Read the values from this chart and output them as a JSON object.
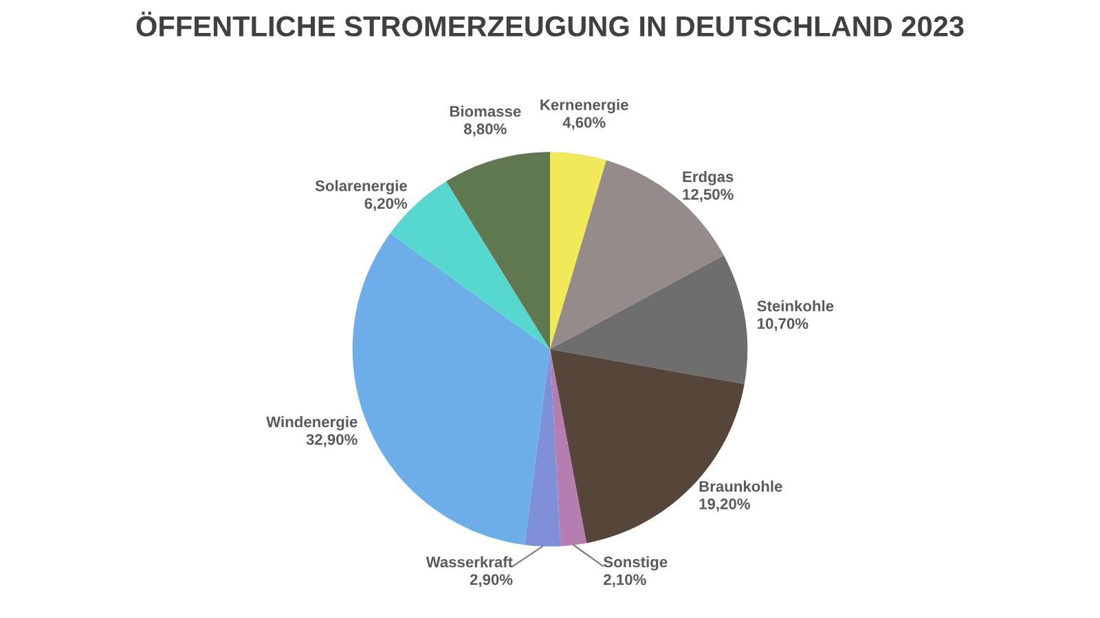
{
  "chart_data": {
    "type": "pie",
    "title": "ÖFFENTLICHE STROMERZEUGUNG IN DEUTSCHLAND 2023",
    "categories": [
      "Kernenergie",
      "Erdgas",
      "Steinkohle",
      "Braunkohle",
      "Sonstige",
      "Wasserkraft",
      "Windenergie",
      "Solarenergie",
      "Biomasse"
    ],
    "values": [
      4.6,
      12.5,
      10.7,
      19.2,
      2.1,
      2.9,
      32.9,
      6.2,
      8.8
    ],
    "value_labels": [
      "4,60%",
      "12,50%",
      "10,70%",
      "19,20%",
      "2,10%",
      "2,90%",
      "32,90%",
      "6,20%",
      "8,80%"
    ],
    "colors": [
      "#f0e95a",
      "#958b8b",
      "#6e6e6e",
      "#56463a",
      "#b47fb0",
      "#7f8fd8",
      "#6eaee8",
      "#56d8d0",
      "#5f7850"
    ]
  }
}
